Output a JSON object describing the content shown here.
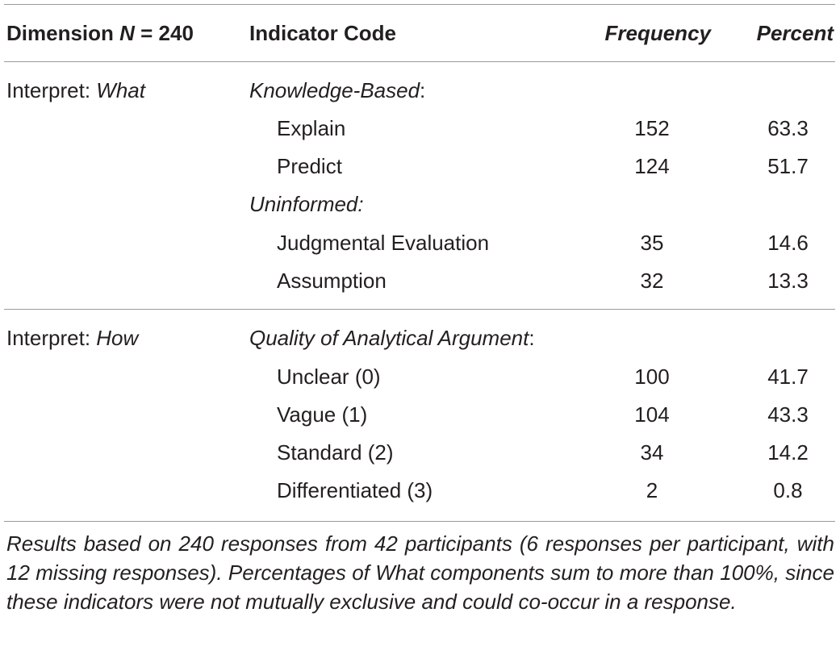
{
  "header": {
    "dimension_label": "Dimension ",
    "dimension_n_symbol": "N",
    "dimension_n_value": " = 240",
    "indicator_label": "Indicator Code",
    "frequency_label": "Frequency",
    "percent_label": "Percent"
  },
  "sections": [
    {
      "dimension_prefix": "Interpret: ",
      "dimension_emph": "What",
      "groups": [
        {
          "label": "Knowledge-Based",
          "label_suffix": ":",
          "rows": [
            {
              "code": "Explain",
              "frequency": "152",
              "percent": "63.3"
            },
            {
              "code": "Predict",
              "frequency": "124",
              "percent": "51.7"
            }
          ]
        },
        {
          "label": "Uninformed:",
          "label_suffix": "",
          "rows": [
            {
              "code": "Judgmental Evaluation",
              "frequency": "35",
              "percent": "14.6"
            },
            {
              "code": "Assumption",
              "frequency": "32",
              "percent": "13.3"
            }
          ]
        }
      ]
    },
    {
      "dimension_prefix": "Interpret: ",
      "dimension_emph": "How",
      "groups": [
        {
          "label": "Quality of Analytical Argument",
          "label_suffix": ":",
          "rows": [
            {
              "code": "Unclear (0)",
              "frequency": "100",
              "percent": "41.7"
            },
            {
              "code": "Vague (1)",
              "frequency": "104",
              "percent": "43.3"
            },
            {
              "code": "Standard (2)",
              "frequency": "34",
              "percent": "14.2"
            },
            {
              "code": "Differentiated (3)",
              "frequency": "2",
              "percent": "0.8"
            }
          ]
        }
      ]
    }
  ],
  "footnote": "Results based on 240 responses from 42 participants (6 responses per participant, with 12 missing responses). Percentages of What components sum to more than 100%, since these indicators were not mutually exclusive and could co-occur in a response."
}
